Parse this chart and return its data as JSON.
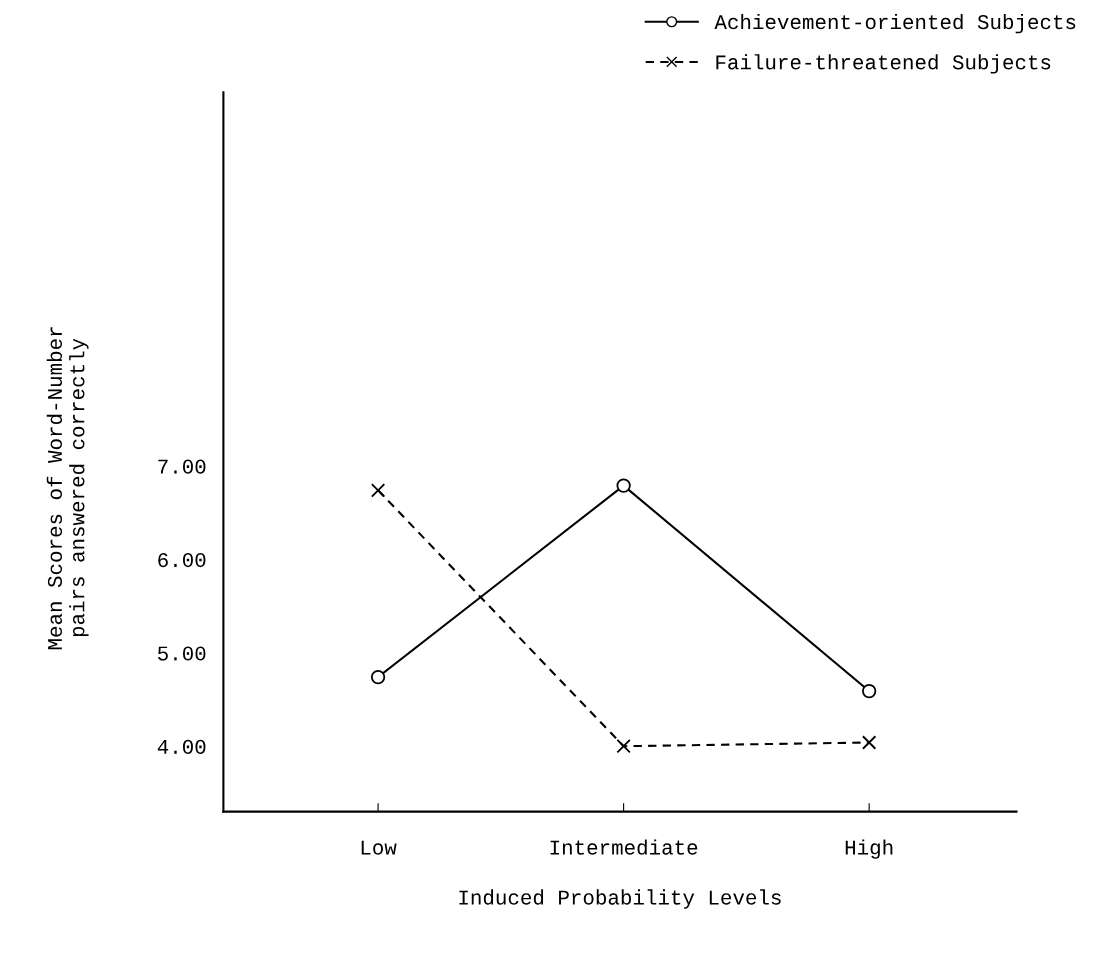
{
  "chart_data": {
    "type": "line",
    "xlabel": "Induced Probability Levels",
    "ylabel": "Mean Scores of Word-Number\npairs answered correctly",
    "categories": [
      "Low",
      "Intermediate",
      "High"
    ],
    "series": [
      {
        "name": "Achievement-oriented Subjects",
        "color": "#000000",
        "values": [
          4.74,
          6.79,
          4.59
        ],
        "marker": "circle",
        "line_style": "solid"
      },
      {
        "name": "Failure-threatened Subjects",
        "color": "#000000",
        "values": [
          6.74,
          4.0,
          4.04
        ],
        "marker": "cross",
        "line_style": "dashed"
      }
    ],
    "ylim": [
      3.3,
      11.0
    ],
    "yticks": [
      {
        "value": 4,
        "label": "4.00"
      },
      {
        "value": 5,
        "label": "5.00"
      },
      {
        "value": 6,
        "label": "6.00"
      },
      {
        "value": 7,
        "label": "7.00"
      }
    ],
    "grid": false,
    "legend": "top right"
  }
}
